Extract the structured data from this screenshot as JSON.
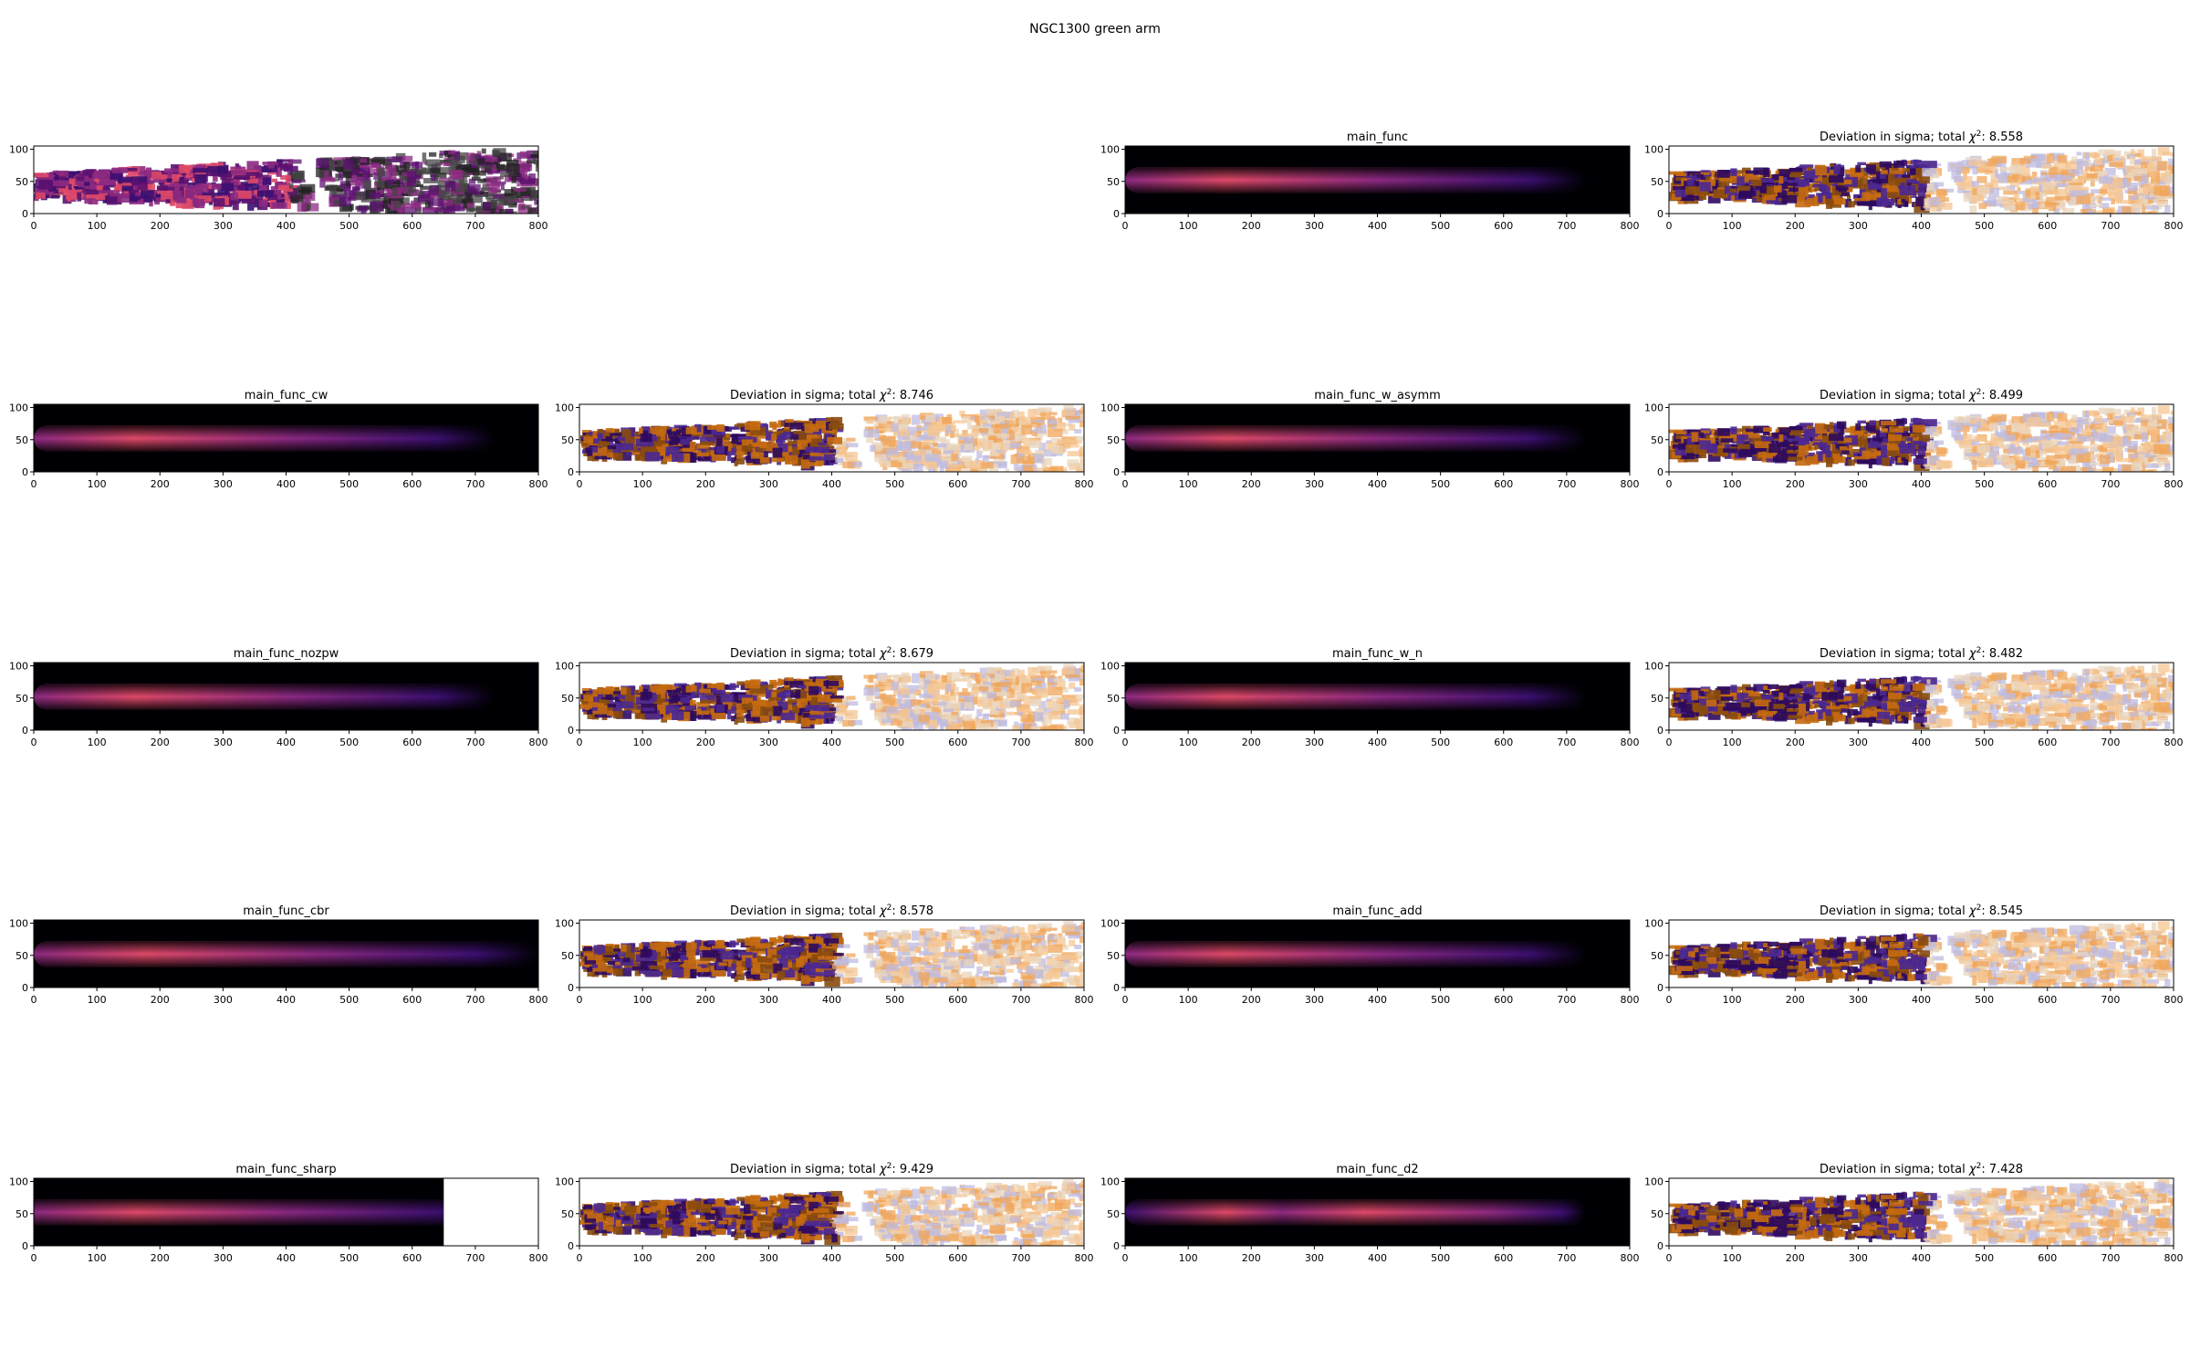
{
  "figure": {
    "suptitle": "NGC1300 green arm"
  },
  "colors": {
    "magma_dark": "#000004",
    "magma_purple": "#3b0f70",
    "magma_magenta": "#8c2981",
    "magma_pink": "#de4968",
    "puor_orange": "#c56a10",
    "puor_dark_purple": "#2d0a5e",
    "puor_light_orange": "#f6c591",
    "puor_light_purple": "#bdbbe0"
  },
  "axes_common": {
    "xticks": [
      "0",
      "100",
      "200",
      "300",
      "400",
      "500",
      "600",
      "700",
      "800"
    ],
    "yticks": [
      "0",
      "50",
      "100"
    ],
    "xlim": [
      0,
      800
    ],
    "ylim": [
      0,
      105
    ]
  },
  "chart_data": [
    {
      "type": "heatmap",
      "kind": "data",
      "title": "",
      "row": 0,
      "col": 0
    },
    {
      "type": "heatmap",
      "kind": "model",
      "title": "main_func",
      "row": 0,
      "col": 2,
      "model_extent": 730,
      "profile": "smooth"
    },
    {
      "type": "heatmap",
      "kind": "residual",
      "title": "Deviation in sigma; total",
      "chi2": "8.558",
      "row": 0,
      "col": 3
    },
    {
      "type": "heatmap",
      "kind": "model",
      "title": "main_func_cw",
      "row": 1,
      "col": 0,
      "model_extent": 730,
      "profile": "taper"
    },
    {
      "type": "heatmap",
      "kind": "residual",
      "title": "Deviation in sigma; total",
      "chi2": "8.746",
      "row": 1,
      "col": 1
    },
    {
      "type": "heatmap",
      "kind": "model",
      "title": "main_func_w_asymm",
      "row": 1,
      "col": 2,
      "model_extent": 730,
      "profile": "smooth"
    },
    {
      "type": "heatmap",
      "kind": "residual",
      "title": "Deviation in sigma; total",
      "chi2": "8.499",
      "row": 1,
      "col": 3
    },
    {
      "type": "heatmap",
      "kind": "model",
      "title": "main_func_nozpw",
      "row": 2,
      "col": 0,
      "model_extent": 730,
      "profile": "smooth"
    },
    {
      "type": "heatmap",
      "kind": "residual",
      "title": "Deviation in sigma; total",
      "chi2": "8.679",
      "row": 2,
      "col": 1
    },
    {
      "type": "heatmap",
      "kind": "model",
      "title": "main_func_w_n",
      "row": 2,
      "col": 2,
      "model_extent": 730,
      "profile": "smooth"
    },
    {
      "type": "heatmap",
      "kind": "residual",
      "title": "Deviation in sigma; total",
      "chi2": "8.482",
      "row": 2,
      "col": 3
    },
    {
      "type": "heatmap",
      "kind": "model",
      "title": "main_func_cbr",
      "row": 3,
      "col": 0,
      "model_extent": 800,
      "profile": "taper"
    },
    {
      "type": "heatmap",
      "kind": "residual",
      "title": "Deviation in sigma; total",
      "chi2": "8.578",
      "row": 3,
      "col": 1
    },
    {
      "type": "heatmap",
      "kind": "model",
      "title": "main_func_add",
      "row": 3,
      "col": 2,
      "model_extent": 730,
      "profile": "smooth"
    },
    {
      "type": "heatmap",
      "kind": "residual",
      "title": "Deviation in sigma; total",
      "chi2": "8.545",
      "row": 3,
      "col": 3
    },
    {
      "type": "heatmap",
      "kind": "model",
      "title": "main_func_sharp",
      "row": 4,
      "col": 0,
      "model_extent": 650,
      "profile": "sharp"
    },
    {
      "type": "heatmap",
      "kind": "residual",
      "title": "Deviation in sigma; total",
      "chi2": "9.429",
      "row": 4,
      "col": 1
    },
    {
      "type": "heatmap",
      "kind": "model",
      "title": "main_func_d2",
      "row": 4,
      "col": 2,
      "model_extent": 730,
      "profile": "double"
    },
    {
      "type": "heatmap",
      "kind": "residual",
      "title": "Deviation in sigma; total",
      "chi2": "7.428",
      "row": 4,
      "col": 3
    }
  ]
}
